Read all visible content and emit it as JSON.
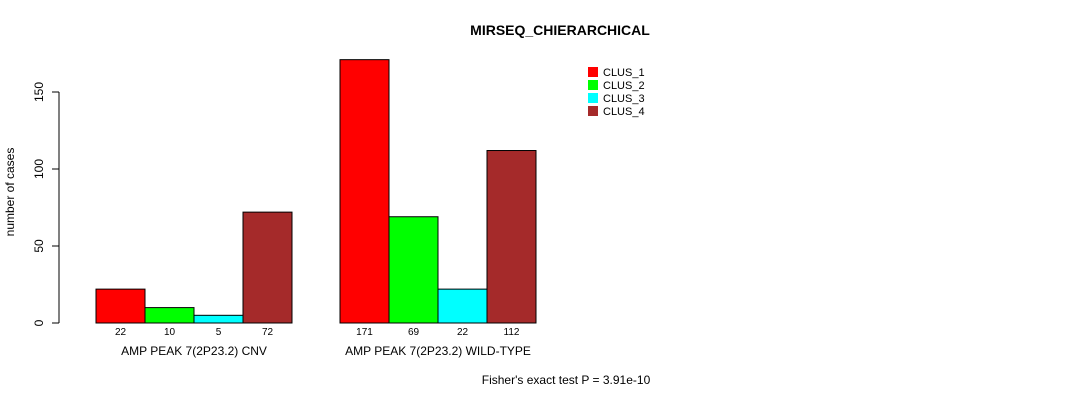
{
  "chart_data": {
    "type": "bar",
    "title": "MIRSEQ_CHIERARCHICAL",
    "xlabel": "",
    "ylabel": "number of cases",
    "ylim": [
      0,
      171
    ],
    "yticks": [
      0,
      50,
      100,
      150
    ],
    "categories": [
      "AMP PEAK  7(2P23.2) CNV",
      "AMP PEAK  7(2P23.2) WILD-TYPE"
    ],
    "series": [
      {
        "name": "CLUS_1",
        "color": "#ff0000",
        "values": [
          22,
          171
        ]
      },
      {
        "name": "CLUS_2",
        "color": "#00ff00",
        "values": [
          10,
          69
        ]
      },
      {
        "name": "CLUS_3",
        "color": "#00ffff",
        "values": [
          5,
          22
        ]
      },
      {
        "name": "CLUS_4",
        "color": "#a52a2a",
        "values": [
          72,
          112
        ]
      }
    ],
    "legend_position": "top-right",
    "grid": false,
    "annotation": "Fisher's exact test P = 3.91e-10"
  }
}
